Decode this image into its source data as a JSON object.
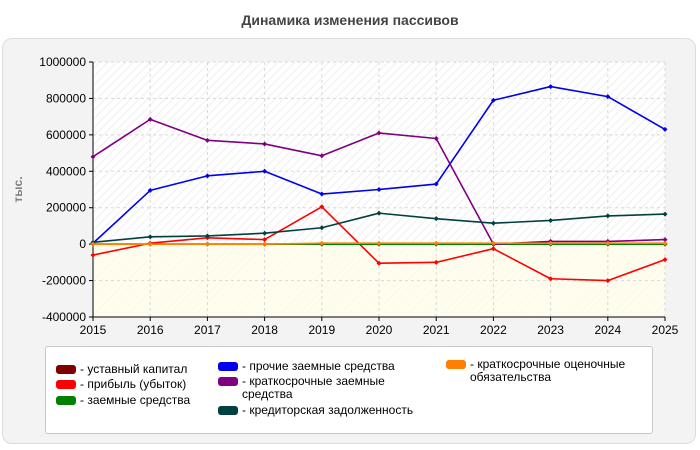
{
  "chart_data": {
    "type": "line",
    "title": "Динамика изменения пассивов",
    "ylabel": "тыс.",
    "xlabel": "",
    "x": [
      2015,
      2016,
      2017,
      2018,
      2019,
      2020,
      2021,
      2022,
      2023,
      2024,
      2025
    ],
    "ylim": [
      -400000,
      1000000
    ],
    "yticks": [
      -400000,
      -200000,
      0,
      200000,
      400000,
      600000,
      800000,
      1000000
    ],
    "ytick_labels": [
      "-400000",
      "-200000",
      "0",
      "200000",
      "400000",
      "600000",
      "800000",
      "1000000"
    ],
    "grid": true,
    "legend_position": "bottom",
    "series": [
      {
        "name": "- уставный капитал",
        "color": "#800000",
        "values": [
          0,
          0,
          0,
          0,
          0,
          0,
          0,
          0,
          0,
          0,
          0
        ]
      },
      {
        "name": "- прибыль (убыток)",
        "color": "#ff0000",
        "values": [
          -60000,
          5000,
          35000,
          25000,
          205000,
          -105000,
          -100000,
          -25000,
          -190000,
          -200000,
          -85000
        ]
      },
      {
        "name": "- заемные средства",
        "color": "#008000",
        "values": [
          0,
          0,
          0,
          0,
          0,
          0,
          0,
          0,
          0,
          0,
          0
        ]
      },
      {
        "name": "- прочие заемные средства",
        "color": "#0000ee",
        "values": [
          5000,
          295000,
          375000,
          400000,
          275000,
          300000,
          330000,
          790000,
          865000,
          810000,
          630000
        ]
      },
      {
        "name": "- краткосрочные заемные средства",
        "color": "#800080",
        "values": [
          480000,
          685000,
          570000,
          550000,
          485000,
          610000,
          580000,
          0,
          15000,
          15000,
          25000
        ]
      },
      {
        "name": "- кредиторская задолженность",
        "color": "#004040",
        "values": [
          10000,
          40000,
          45000,
          60000,
          90000,
          170000,
          140000,
          115000,
          130000,
          155000,
          165000
        ]
      },
      {
        "name": "- краткосрочные оценочные обязательства",
        "color": "#ff8000",
        "values": [
          0,
          0,
          0,
          0,
          5000,
          5000,
          5000,
          5000,
          5000,
          5000,
          5000
        ]
      }
    ]
  }
}
